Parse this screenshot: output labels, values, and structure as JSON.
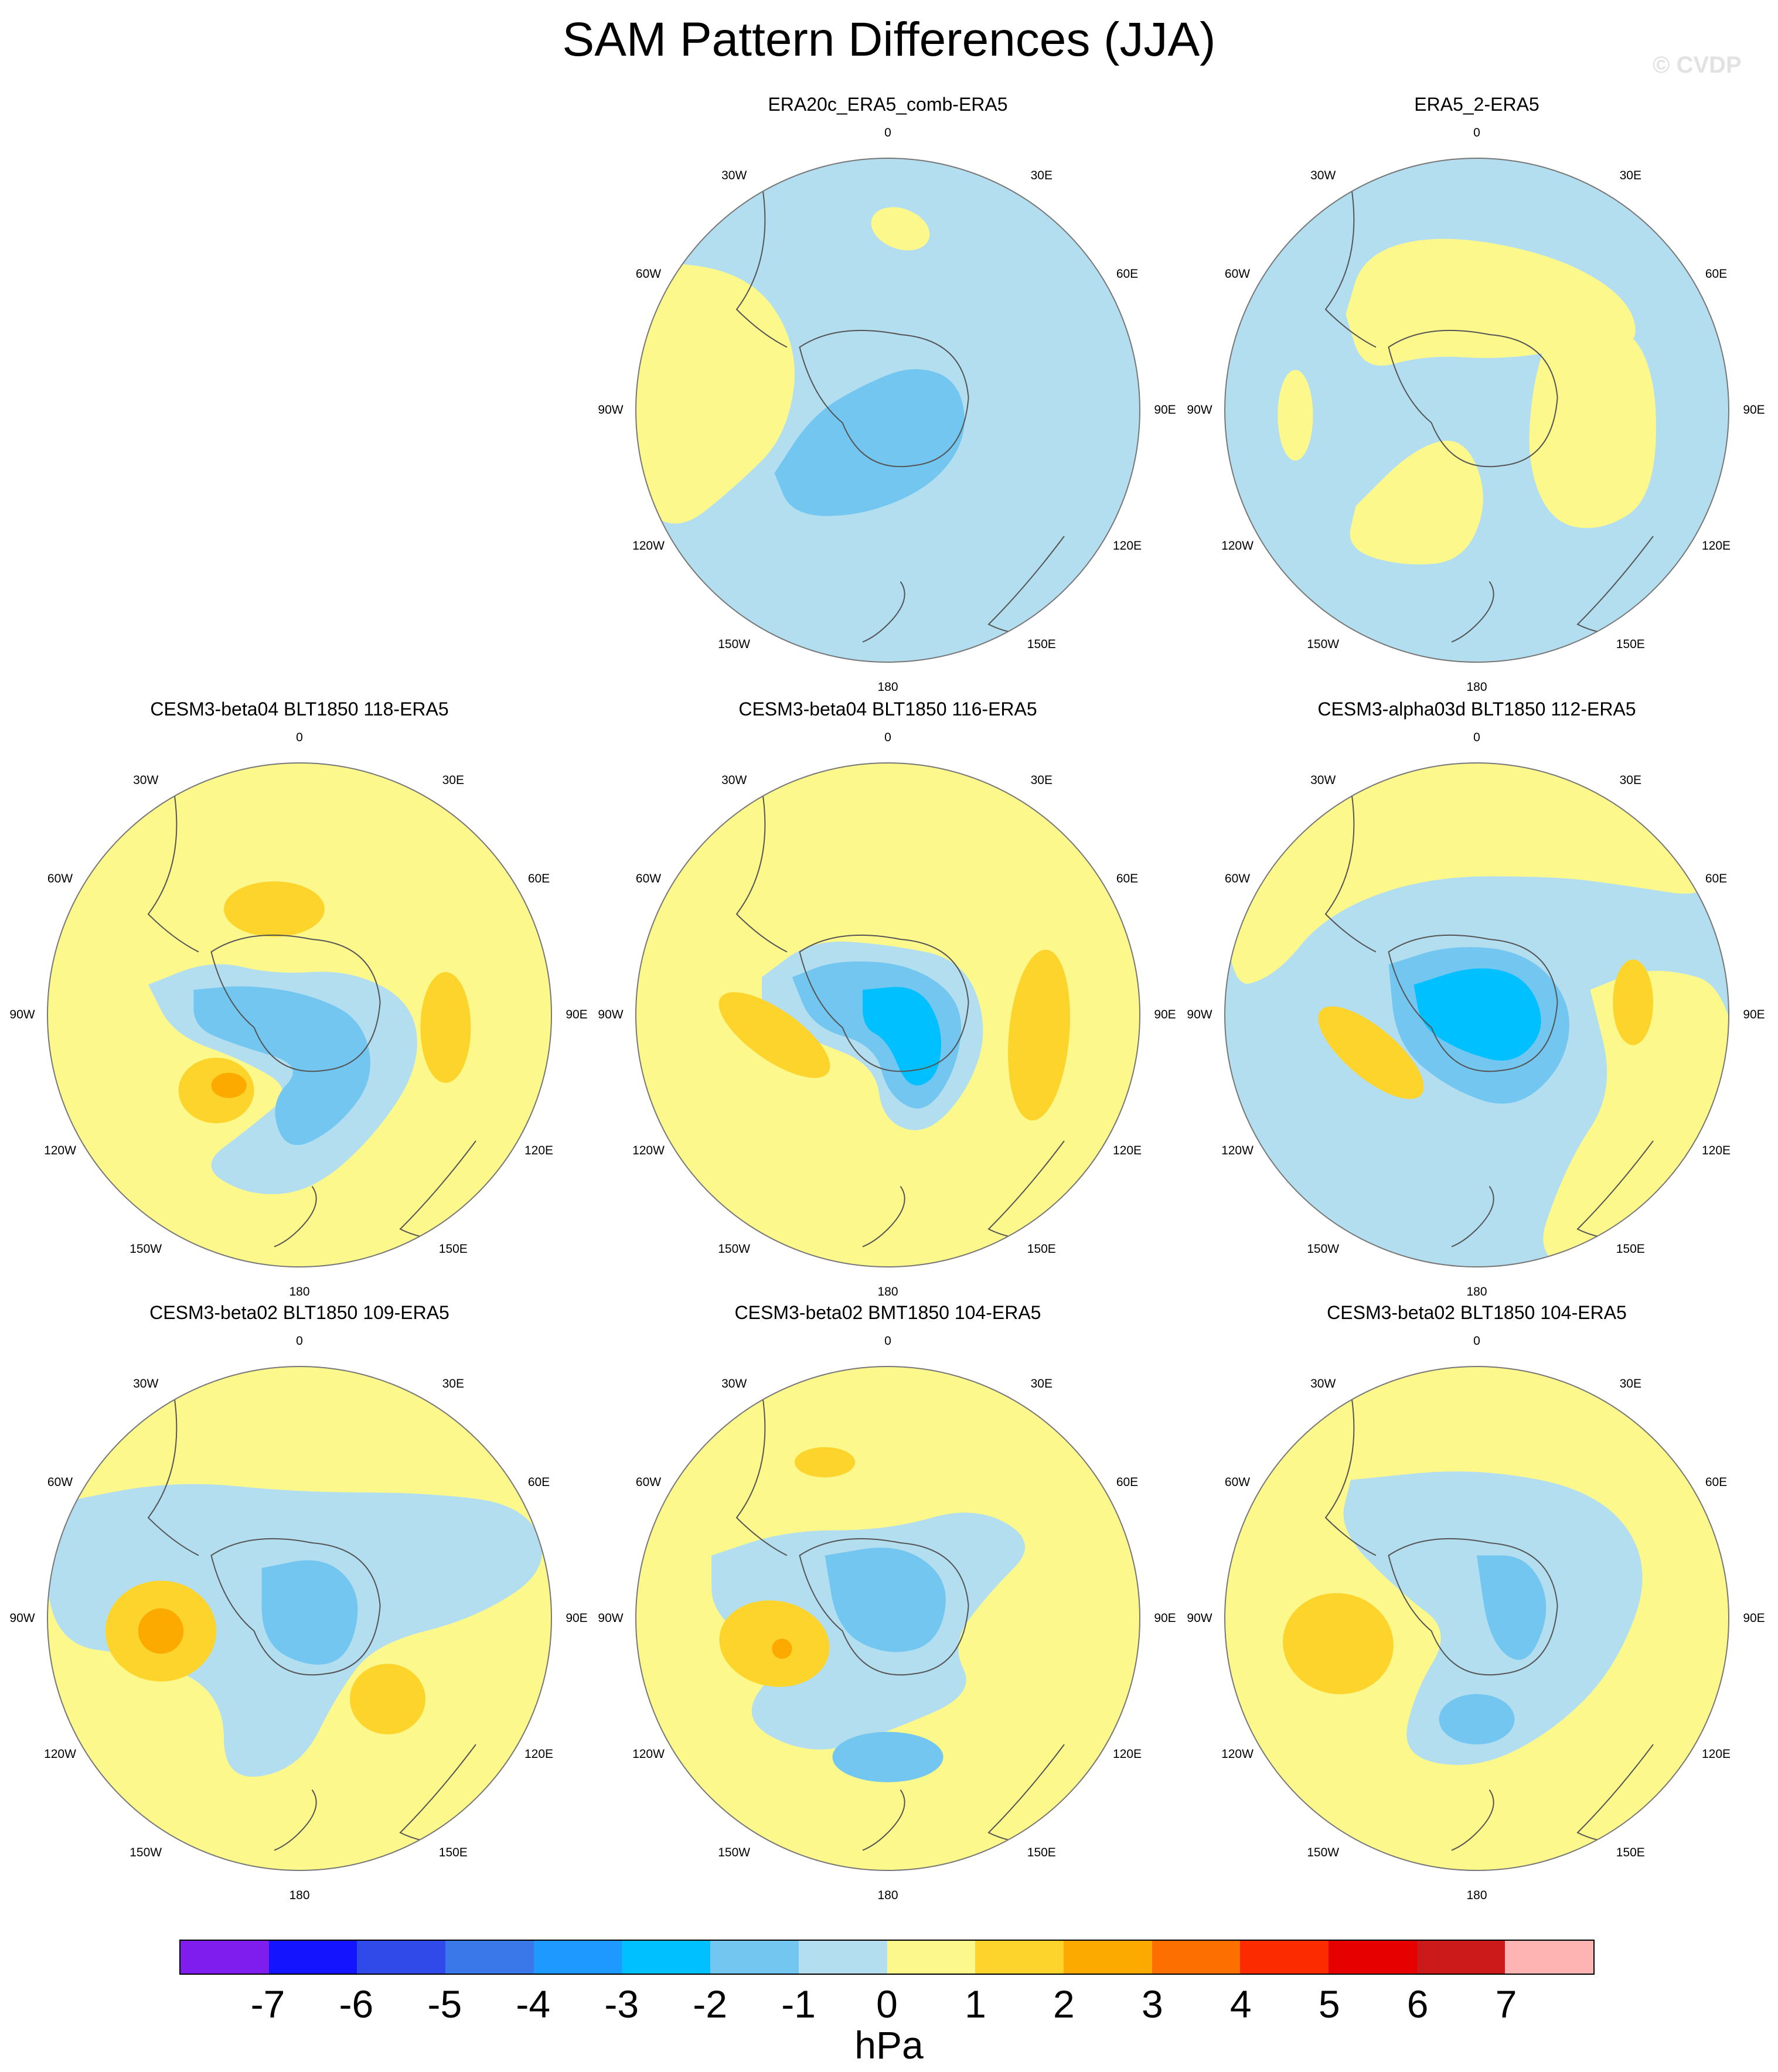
{
  "title": "SAM Pattern Differences (JJA)",
  "watermark": "© CVDP",
  "units": "hPa",
  "colorbar": {
    "colors": [
      "#7f1cee",
      "#1414ff",
      "#2f4ae8",
      "#3a78ea",
      "#1e99ff",
      "#00c0ff",
      "#72c6f0",
      "#b2def0",
      "#fcf88c",
      "#fdd42c",
      "#fdaa00",
      "#fd7000",
      "#fd2c00",
      "#e60000",
      "#cc1a1a",
      "#ffb4b4"
    ],
    "tick_labels": [
      "-7",
      "-6",
      "-5",
      "-4",
      "-3",
      "-2",
      "-1",
      "0",
      "1",
      "2",
      "3",
      "4",
      "5",
      "6",
      "7"
    ]
  },
  "longitude_labels": {
    "top": "0",
    "bottom": "180",
    "w30": "30W",
    "e30": "30E",
    "w60": "60W",
    "e60": "60E",
    "w90": "90W",
    "e90": "90E",
    "w120": "120W",
    "e120": "120E",
    "w150": "150W",
    "e150": "150E"
  },
  "panels": [
    {
      "title": "ERA20c_ERA5_comb-ERA5",
      "background": "#b2def0",
      "patches": [
        {
          "value": 0.5,
          "shape": "yellow-west-sector"
        },
        {
          "value": 0.5,
          "shape": "small-yellow-north"
        },
        {
          "value": -1.5,
          "shape": "blue-center-lobe"
        }
      ]
    },
    {
      "title": "ERA5_2-ERA5",
      "background": "#b2def0",
      "patches": [
        {
          "value": 0.5,
          "shape": "yellow-north-band"
        },
        {
          "value": 0.5,
          "shape": "yellow-east-arm"
        },
        {
          "value": 0.5,
          "shape": "yellow-southwest-blob"
        },
        {
          "value": 0.5,
          "shape": "yellow-west-oval"
        }
      ]
    },
    {
      "title": "CESM3-beta04 BLT1850 118-ERA5",
      "background": "#fcf88c",
      "patches": [
        {
          "value": -0.5,
          "shape": "blue-central-band"
        },
        {
          "value": -1.5,
          "shape": "blue-center-core"
        },
        {
          "value": 1.5,
          "shape": "orange-north"
        },
        {
          "value": 1.5,
          "shape": "orange-east"
        },
        {
          "value": 1.5,
          "shape": "orange-southwest"
        },
        {
          "value": 2.5,
          "shape": "dark-orange-southwest"
        }
      ]
    },
    {
      "title": "CESM3-beta04 BLT1850 116-ERA5",
      "background": "#fcf88c",
      "patches": [
        {
          "value": -0.5,
          "shape": "blue-halo"
        },
        {
          "value": -1.5,
          "shape": "blue-mid"
        },
        {
          "value": -2.5,
          "shape": "cyan-core"
        },
        {
          "value": 1.5,
          "shape": "orange-east-band"
        },
        {
          "value": 1.5,
          "shape": "orange-west-band"
        }
      ]
    },
    {
      "title": "CESM3-alpha03d BLT1850 112-ERA5",
      "background": "#b2def0",
      "patches": [
        {
          "value": 0.5,
          "shape": "yellow-north"
        },
        {
          "value": 0.5,
          "shape": "yellow-southeast"
        },
        {
          "value": -1.5,
          "shape": "blue-mid"
        },
        {
          "value": -2.5,
          "shape": "cyan-core"
        },
        {
          "value": 1.5,
          "shape": "orange-east-oval"
        },
        {
          "value": 1.5,
          "shape": "orange-west-band"
        }
      ]
    },
    {
      "title": "CESM3-beta02 BLT1850 109-ERA5",
      "background": "#fcf88c",
      "patches": [
        {
          "value": -0.5,
          "shape": "blue-band"
        },
        {
          "value": -1.5,
          "shape": "blue-center"
        },
        {
          "value": 1.5,
          "shape": "orange-west"
        },
        {
          "value": 2.5,
          "shape": "dark-orange-west"
        },
        {
          "value": 1.5,
          "shape": "orange-southeast"
        }
      ]
    },
    {
      "title": "CESM3-beta02 BMT1850 104-ERA5",
      "background": "#fcf88c",
      "patches": [
        {
          "value": -0.5,
          "shape": "blue-band"
        },
        {
          "value": -1.5,
          "shape": "blue-center"
        },
        {
          "value": -1.5,
          "shape": "blue-south"
        },
        {
          "value": 1.5,
          "shape": "orange-north"
        },
        {
          "value": 1.5,
          "shape": "orange-west"
        },
        {
          "value": 2.5,
          "shape": "dark-orange-west"
        }
      ]
    },
    {
      "title": "CESM3-beta02 BLT1850 104-ERA5",
      "background": "#fcf88c",
      "patches": [
        {
          "value": -0.5,
          "shape": "blue-band"
        },
        {
          "value": -1.5,
          "shape": "blue-center"
        },
        {
          "value": -1.5,
          "shape": "blue-south"
        },
        {
          "value": 1.5,
          "shape": "orange-west"
        }
      ]
    }
  ]
}
